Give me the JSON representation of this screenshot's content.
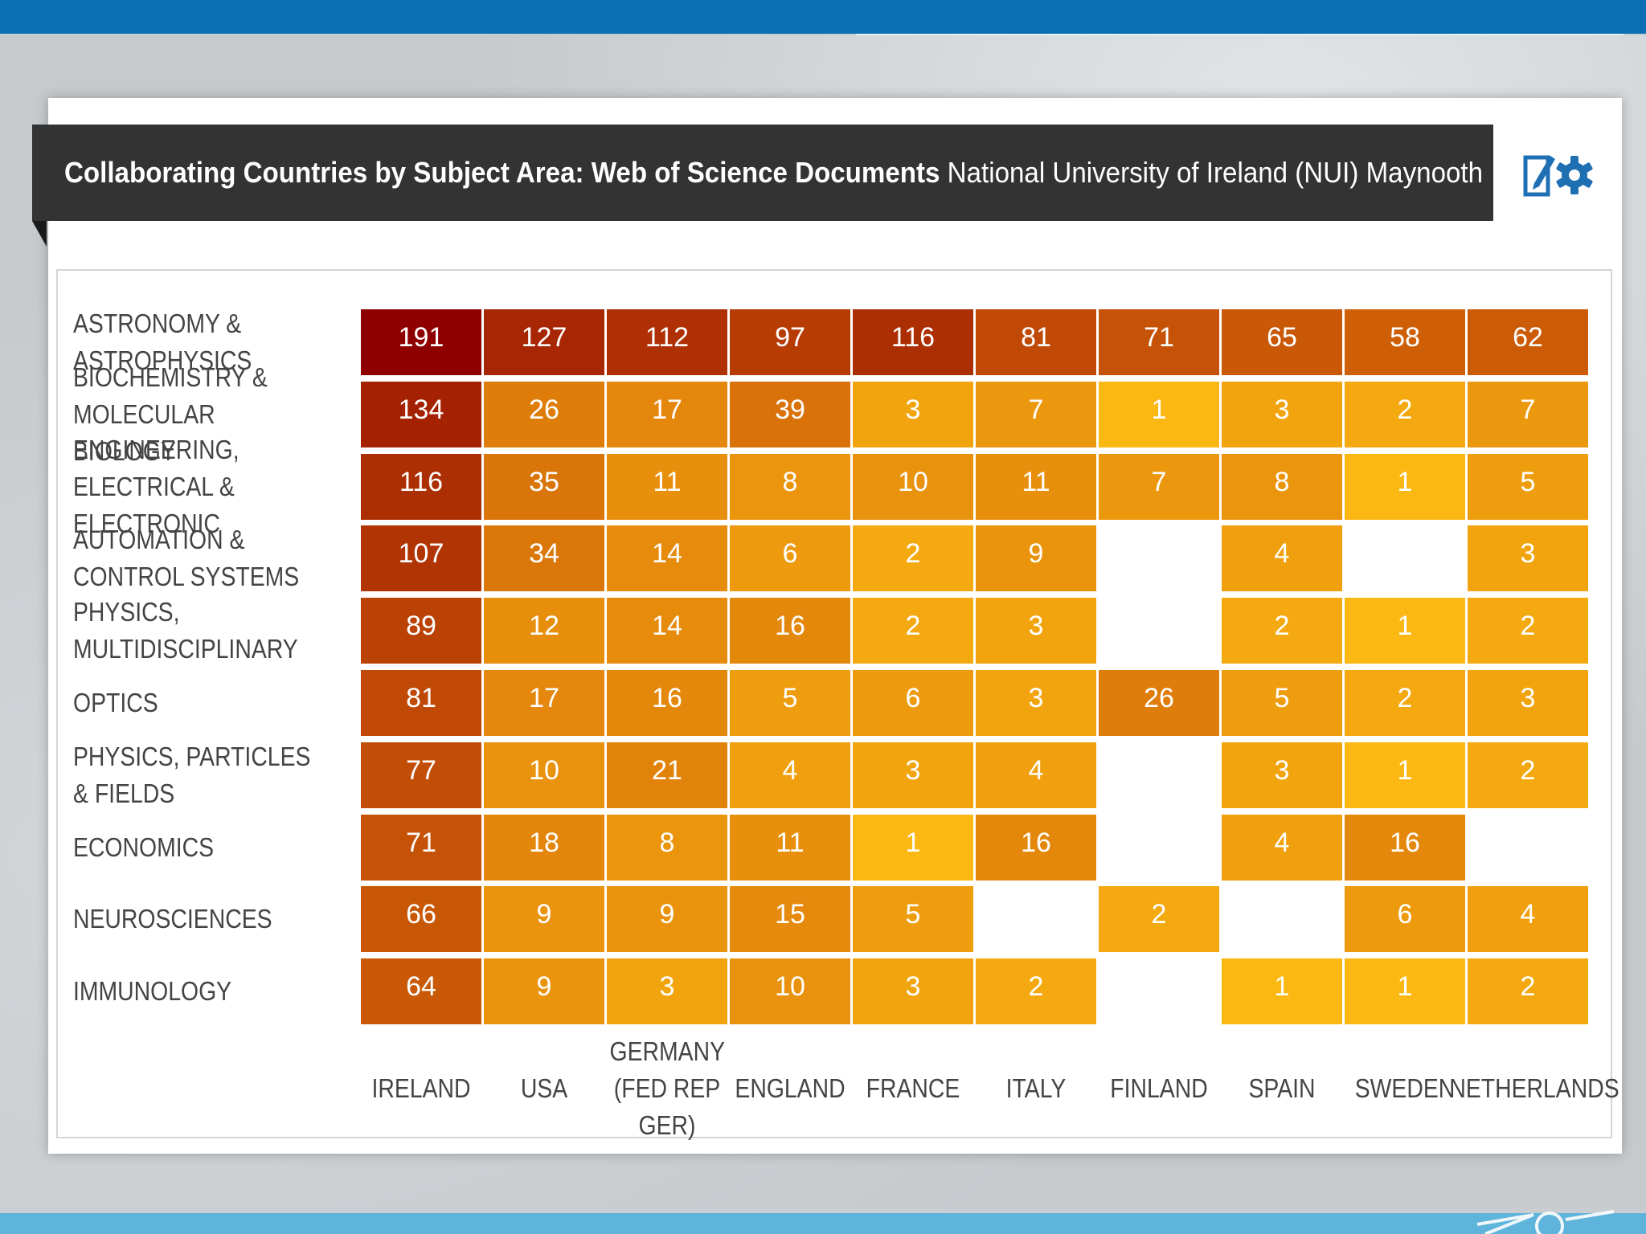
{
  "title": {
    "main": "Collaborating Countries by Subject Area: Web of Science Documents",
    "sub": "National University of Ireland (NUI) Maynooth"
  },
  "icons": [
    "edit-icon",
    "gear-icon"
  ],
  "colors": {
    "header_bar": "#0a6fb3",
    "title_bar": "#333333",
    "scale_high": "#8e0000",
    "scale_low": "#fcb812",
    "bottom_bar": "#5fb4dc"
  },
  "chart_data": {
    "type": "heatmap",
    "rows": [
      "ASTRONOMY & ASTROPHYSICS",
      "BIOCHEMISTRY & MOLECULAR BIOLOGY",
      "ENGINEERING, ELECTRICAL & ELECTRONIC",
      "AUTOMATION & CONTROL SYSTEMS",
      "PHYSICS, MULTIDISCIPLINARY",
      "OPTICS",
      "PHYSICS, PARTICLES & FIELDS",
      "ECONOMICS",
      "NEUROSCIENCES",
      "IMMUNOLOGY"
    ],
    "columns": [
      "IRELAND",
      "USA",
      "GERMANY (FED REP GER)",
      "ENGLAND",
      "FRANCE",
      "ITALY",
      "FINLAND",
      "SPAIN",
      "SWEDEN",
      "NETHERLANDS"
    ],
    "values": [
      [
        191,
        127,
        112,
        97,
        116,
        81,
        71,
        65,
        58,
        62
      ],
      [
        134,
        26,
        17,
        39,
        3,
        7,
        1,
        3,
        2,
        7
      ],
      [
        116,
        35,
        11,
        8,
        10,
        11,
        7,
        8,
        1,
        5
      ],
      [
        107,
        34,
        14,
        6,
        2,
        9,
        null,
        4,
        null,
        3
      ],
      [
        89,
        12,
        14,
        16,
        2,
        3,
        null,
        2,
        1,
        2
      ],
      [
        81,
        17,
        16,
        5,
        6,
        3,
        26,
        5,
        2,
        3
      ],
      [
        77,
        10,
        21,
        4,
        3,
        4,
        null,
        3,
        1,
        2
      ],
      [
        71,
        18,
        8,
        11,
        1,
        16,
        null,
        4,
        16,
        null
      ],
      [
        66,
        9,
        9,
        15,
        5,
        null,
        2,
        null,
        6,
        4
      ],
      [
        64,
        9,
        3,
        10,
        3,
        2,
        null,
        1,
        1,
        2
      ]
    ],
    "color_scale": {
      "min": 1,
      "max": 191
    }
  }
}
